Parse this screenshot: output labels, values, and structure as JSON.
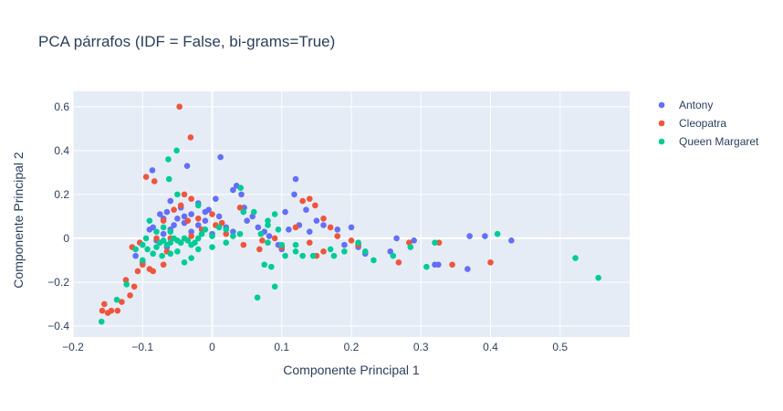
{
  "chart_data": {
    "type": "scatter",
    "title": "PCA párrafos (IDF = False, bi-grams=True)",
    "xlabel": "Componente Principal 1",
    "ylabel": "Componente Principal 2",
    "xlim": [
      -0.2,
      0.6
    ],
    "ylim": [
      -0.45,
      0.67
    ],
    "x_ticks": [
      -0.2,
      -0.1,
      0,
      0.1,
      0.2,
      0.3,
      0.4,
      0.5
    ],
    "x_tick_labels": [
      "−0.2",
      "−0.1",
      "0",
      "0.1",
      "0.2",
      "0.3",
      "0.4",
      "0.5"
    ],
    "y_ticks": [
      -0.4,
      -0.2,
      0,
      0.2,
      0.4,
      0.6
    ],
    "y_tick_labels": [
      "−0.4",
      "−0.2",
      "0",
      "0.2",
      "0.4",
      "0.6"
    ],
    "grid": true,
    "legend_position": "top-right",
    "plot_background": "#e5ecf6",
    "series": [
      {
        "name": "Antony",
        "color": "#636efa",
        "points": [
          [
            -0.086,
            0.31
          ],
          [
            -0.036,
            0.33
          ],
          [
            0.012,
            0.37
          ],
          [
            0.03,
            0.22
          ],
          [
            0.035,
            0.24
          ],
          [
            0.042,
            0.2
          ],
          [
            0.046,
            0.14
          ],
          [
            0.058,
            0.1
          ],
          [
            0.12,
            0.27
          ],
          [
            0.118,
            0.2
          ],
          [
            0.105,
            0.12
          ],
          [
            0.135,
            0.13
          ],
          [
            0.15,
            0.08
          ],
          [
            0.16,
            0.06
          ],
          [
            0.005,
            0.18
          ],
          [
            -0.005,
            0.13
          ],
          [
            -0.02,
            0.16
          ],
          [
            -0.03,
            0.11
          ],
          [
            -0.06,
            0.17
          ],
          [
            -0.045,
            0.14
          ],
          [
            -0.07,
            0.09
          ],
          [
            -0.05,
            0.09
          ],
          [
            -0.04,
            0.07
          ],
          [
            -0.01,
            0.08
          ],
          [
            0.01,
            0.1
          ],
          [
            0.05,
            0.08
          ],
          [
            0.066,
            0.05
          ],
          [
            0.075,
            0.03
          ],
          [
            0.082,
            0.01
          ],
          [
            0.095,
            -0.03
          ],
          [
            0.1,
            -0.05
          ],
          [
            0.11,
            0.04
          ],
          [
            0.125,
            0.06
          ],
          [
            0.14,
            0.03
          ],
          [
            0.18,
            0.04
          ],
          [
            0.19,
            -0.03
          ],
          [
            0.2,
            0.05
          ],
          [
            0.21,
            -0.04
          ],
          [
            0.22,
            -0.07
          ],
          [
            0.256,
            -0.06
          ],
          [
            0.265,
            0.0
          ],
          [
            0.29,
            -0.01
          ],
          [
            0.32,
            -0.12
          ],
          [
            0.325,
            -0.12
          ],
          [
            0.367,
            -0.14
          ],
          [
            0.37,
            0.01
          ],
          [
            0.392,
            0.01
          ],
          [
            0.43,
            -0.01
          ],
          [
            -0.11,
            -0.08
          ],
          [
            -0.1,
            -0.11
          ],
          [
            -0.08,
            -0.01
          ],
          [
            -0.07,
            0.02
          ],
          [
            -0.065,
            -0.04
          ],
          [
            -0.055,
            0.06
          ],
          [
            -0.09,
            0.04
          ],
          [
            -0.03,
            0.03
          ],
          [
            -0.02,
            0.06
          ],
          [
            0.0,
            0.02
          ],
          [
            0.02,
            0.05
          ],
          [
            0.03,
            0.03
          ],
          [
            -0.085,
            0.05
          ],
          [
            -0.075,
            0.11
          ],
          [
            -0.065,
            0.12
          ],
          [
            -0.04,
            0.1
          ],
          [
            -0.01,
            0.12
          ],
          [
            -0.06,
            0.04
          ]
        ]
      },
      {
        "name": "Cleopatra",
        "color": "#ef553b",
        "points": [
          [
            -0.047,
            0.6
          ],
          [
            -0.031,
            0.46
          ],
          [
            -0.095,
            0.28
          ],
          [
            -0.083,
            0.26
          ],
          [
            -0.04,
            0.2
          ],
          [
            -0.03,
            0.18
          ],
          [
            -0.045,
            0.15
          ],
          [
            -0.055,
            0.13
          ],
          [
            -0.02,
            0.09
          ],
          [
            0.0,
            0.11
          ],
          [
            0.04,
            0.14
          ],
          [
            0.14,
            0.18
          ],
          [
            0.13,
            0.17
          ],
          [
            0.148,
            0.15
          ],
          [
            0.16,
            0.09
          ],
          [
            0.17,
            0.05
          ],
          [
            0.18,
            0.01
          ],
          [
            0.2,
            -0.01
          ],
          [
            0.21,
            -0.03
          ],
          [
            0.09,
            0.0
          ],
          [
            0.045,
            -0.03
          ],
          [
            0.068,
            -0.05
          ],
          [
            0.072,
            -0.01
          ],
          [
            0.15,
            -0.08
          ],
          [
            0.16,
            -0.06
          ],
          [
            0.14,
            -0.02
          ],
          [
            0.268,
            -0.11
          ],
          [
            0.283,
            -0.02
          ],
          [
            0.326,
            -0.02
          ],
          [
            0.345,
            -0.12
          ],
          [
            0.4,
            -0.11
          ],
          [
            -0.158,
            -0.33
          ],
          [
            -0.155,
            -0.3
          ],
          [
            -0.15,
            -0.34
          ],
          [
            -0.145,
            -0.33
          ],
          [
            -0.136,
            -0.33
          ],
          [
            -0.13,
            -0.29
          ],
          [
            -0.124,
            -0.19
          ],
          [
            -0.118,
            -0.26
          ],
          [
            -0.112,
            -0.22
          ],
          [
            -0.107,
            -0.15
          ],
          [
            -0.1,
            -0.12
          ],
          [
            -0.09,
            -0.14
          ],
          [
            -0.085,
            -0.15
          ],
          [
            -0.07,
            -0.12
          ],
          [
            -0.115,
            -0.04
          ],
          [
            -0.104,
            -0.02
          ],
          [
            -0.06,
            0.0
          ],
          [
            -0.045,
            -0.02
          ],
          [
            -0.03,
            0.01
          ],
          [
            -0.015,
            0.04
          ],
          [
            0.005,
            0.06
          ],
          [
            0.014,
            0.07
          ],
          [
            -0.07,
            0.08
          ],
          [
            -0.035,
            0.08
          ],
          [
            0.02,
            0.02
          ],
          [
            -0.08,
            0.0
          ],
          [
            -0.065,
            -0.06
          ],
          [
            0.1,
            -0.04
          ],
          [
            0.12,
            0.05
          ]
        ]
      },
      {
        "name": "Queen Margaret",
        "color": "#00cc96",
        "points": [
          [
            -0.051,
            0.4
          ],
          [
            -0.063,
            0.36
          ],
          [
            -0.062,
            0.27
          ],
          [
            -0.05,
            0.2
          ],
          [
            -0.02,
            0.15
          ],
          [
            -0.09,
            0.08
          ],
          [
            0.041,
            0.23
          ],
          [
            0.045,
            0.12
          ],
          [
            0.06,
            0.12
          ],
          [
            0.09,
            0.11
          ],
          [
            0.08,
            0.06
          ],
          [
            0.07,
            0.02
          ],
          [
            0.065,
            -0.27
          ],
          [
            0.075,
            -0.12
          ],
          [
            0.085,
            -0.13
          ],
          [
            0.09,
            -0.22
          ],
          [
            0.08,
            -0.02
          ],
          [
            0.1,
            -0.03
          ],
          [
            0.105,
            -0.08
          ],
          [
            0.12,
            -0.06
          ],
          [
            0.145,
            -0.08
          ],
          [
            0.17,
            -0.05
          ],
          [
            0.19,
            -0.06
          ],
          [
            0.22,
            -0.06
          ],
          [
            0.232,
            -0.1
          ],
          [
            0.26,
            -0.08
          ],
          [
            0.285,
            -0.04
          ],
          [
            0.308,
            -0.13
          ],
          [
            0.32,
            -0.02
          ],
          [
            0.41,
            0.02
          ],
          [
            0.522,
            -0.09
          ],
          [
            0.555,
            -0.18
          ],
          [
            -0.159,
            -0.38
          ],
          [
            -0.137,
            -0.28
          ],
          [
            -0.123,
            -0.21
          ],
          [
            -0.1,
            -0.1
          ],
          [
            -0.093,
            -0.05
          ],
          [
            -0.08,
            -0.04
          ],
          [
            -0.075,
            -0.02
          ],
          [
            -0.07,
            -0.01
          ],
          [
            -0.065,
            -0.03
          ],
          [
            -0.06,
            -0.02
          ],
          [
            -0.055,
            0.0
          ],
          [
            -0.05,
            -0.01
          ],
          [
            -0.045,
            -0.02
          ],
          [
            -0.04,
            0.0
          ],
          [
            -0.035,
            -0.01
          ],
          [
            -0.03,
            -0.03
          ],
          [
            -0.025,
            -0.02
          ],
          [
            -0.02,
            0.0
          ],
          [
            -0.015,
            0.02
          ],
          [
            -0.01,
            0.04
          ],
          [
            0.0,
            0.01
          ],
          [
            0.01,
            0.05
          ],
          [
            0.02,
            0.04
          ],
          [
            0.03,
            0.01
          ],
          [
            -0.085,
            -0.07
          ],
          [
            -0.072,
            -0.08
          ],
          [
            -0.04,
            -0.11
          ],
          [
            -0.06,
            -0.07
          ],
          [
            -0.05,
            -0.06
          ],
          [
            -0.03,
            -0.09
          ],
          [
            -0.1,
            -0.03
          ],
          [
            -0.11,
            -0.05
          ],
          [
            -0.095,
            0.0
          ],
          [
            -0.08,
            0.03
          ],
          [
            -0.07,
            0.05
          ],
          [
            -0.06,
            0.03
          ],
          [
            0.02,
            -0.02
          ],
          [
            0.04,
            0.02
          ],
          [
            0.12,
            -0.03
          ],
          [
            0.13,
            -0.08
          ],
          [
            0.175,
            -0.08
          ],
          [
            0.21,
            -0.02
          ],
          [
            0.08,
            0.08
          ],
          [
            0.095,
            0.04
          ],
          [
            -0.02,
            -0.05
          ],
          [
            0.0,
            -0.04
          ]
        ]
      }
    ]
  }
}
